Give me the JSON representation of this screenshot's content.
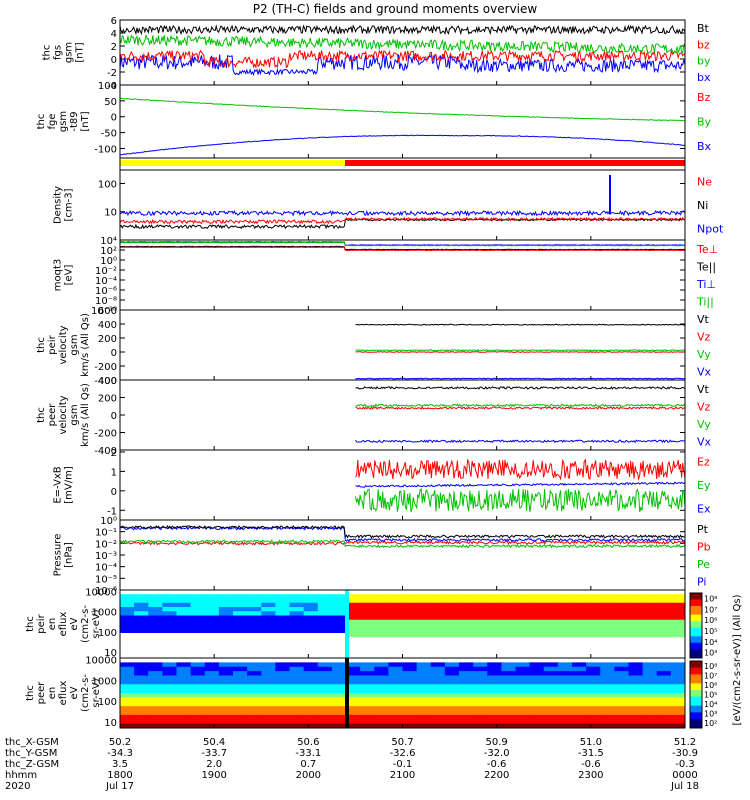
{
  "title": "P2 (TH-C) fields and ground moments overview",
  "chart_data": {
    "type": "line",
    "x_time_ticks": [
      "1800",
      "1900",
      "2000",
      "2100",
      "2200",
      "2300",
      "0000"
    ],
    "x_date_labels": [
      "Jul 17",
      "Jul 18"
    ],
    "year": "2020",
    "ephemeris": {
      "row_labels": [
        "thc_X-GSM",
        "thc_Y-GSM",
        "thc_Z-GSM",
        "hhmm",
        "2020"
      ],
      "X": [
        "50.2",
        "50.4",
        "50.6",
        "50.7",
        "50.9",
        "51.0",
        "51.2"
      ],
      "Xgsm": [
        "-34.3",
        "-33.7",
        "-33.1",
        "-32.6",
        "-32.0",
        "-31.5",
        "-30.9"
      ],
      "Ygsm": [
        "3.5",
        "2.0",
        "0.7",
        "-0.1",
        "-0.6",
        "-0.6",
        "-0.3"
      ],
      "Zgsm": [
        "1800",
        "1900",
        "2000",
        "2100",
        "2200",
        "2300",
        "0000"
      ]
    },
    "transition_hhmm": "2030",
    "panels": [
      {
        "id": "fgs",
        "ylabel": [
          "thc",
          "fgs",
          "gsm",
          "[nT]"
        ],
        "ylim": [
          -4,
          6
        ],
        "yticks": [
          "6",
          "4",
          "2",
          "0",
          "-2",
          "-4"
        ],
        "legend": [
          {
            "label": "Bt",
            "color": "#000000"
          },
          {
            "label": "bz",
            "color": "#ff0000"
          },
          {
            "label": "by",
            "color": "#00c000"
          },
          {
            "label": "bx",
            "color": "#0000ff"
          }
        ]
      },
      {
        "id": "fge",
        "ylabel": [
          "thc",
          "fge",
          "gsm",
          "-t89",
          "[nT]"
        ],
        "ylim": [
          -130,
          100
        ],
        "yticks": [
          "100",
          "50",
          "0",
          "-50",
          "-100"
        ],
        "legend": [
          {
            "label": "Bz",
            "color": "#ff0000"
          },
          {
            "label": "By",
            "color": "#00c000"
          },
          {
            "label": "Bx",
            "color": "#0000ff"
          }
        ]
      },
      {
        "id": "density",
        "ylabel": [
          "Density",
          "[cm-3]"
        ],
        "ylim": [
          1,
          300
        ],
        "yticks": [
          "100",
          "10"
        ],
        "legend": [
          {
            "label": "Ne",
            "color": "#ff0000"
          },
          {
            "label": "Ni",
            "color": "#000000"
          },
          {
            "label": "Npot",
            "color": "#0000ff"
          }
        ]
      },
      {
        "id": "temperature",
        "ylabel": [
          "moqt3",
          "[eV]"
        ],
        "ylim": [
          1e-10,
          10000.0
        ],
        "yticks": [
          "10⁴",
          "10²",
          "10⁰",
          "10⁻²",
          "10⁻⁴",
          "10⁻⁶",
          "10⁻⁸",
          "10⁻¹⁰"
        ],
        "legend": [
          {
            "label": "Te⊥",
            "color": "#ff0000"
          },
          {
            "label": "Te||",
            "color": "#000000"
          },
          {
            "label": "Ti⊥",
            "color": "#0000ff"
          },
          {
            "label": "Ti||",
            "color": "#00c000"
          }
        ]
      },
      {
        "id": "peir_vel",
        "ylabel": [
          "thc",
          "peir",
          "velocity",
          "gsm",
          "km/s (All Qs)"
        ],
        "ylim": [
          -400,
          600
        ],
        "yticks": [
          "600",
          "400",
          "200",
          "0",
          "-200",
          "-400"
        ],
        "series_values": {
          "Vt": 390,
          "Vz": 0,
          "Vy": 25,
          "Vx": -380
        },
        "legend": [
          {
            "label": "Vt",
            "color": "#000000"
          },
          {
            "label": "Vz",
            "color": "#ff0000"
          },
          {
            "label": "Vy",
            "color": "#00c000"
          },
          {
            "label": "Vx",
            "color": "#0000ff"
          }
        ]
      },
      {
        "id": "peer_vel",
        "ylabel": [
          "thc",
          "peer",
          "velocity",
          "gsm",
          "km/s (All Qs)"
        ],
        "ylim": [
          -400,
          400
        ],
        "yticks": [
          "400",
          "200",
          "0",
          "-200",
          "-400"
        ],
        "series_values": {
          "Vt": 310,
          "Vz": 80,
          "Vy": 110,
          "Vx": -300
        },
        "legend": [
          {
            "label": "Vt",
            "color": "#000000"
          },
          {
            "label": "Vz",
            "color": "#ff0000"
          },
          {
            "label": "Vy",
            "color": "#00c000"
          },
          {
            "label": "Vx",
            "color": "#0000ff"
          }
        ]
      },
      {
        "id": "efield",
        "ylabel": [
          "E=-VxB",
          "[mV/m]"
        ],
        "ylim": [
          -1.5,
          2.1
        ],
        "yticks": [
          "2",
          "1",
          "0",
          "-1"
        ],
        "legend": [
          {
            "label": "Ez",
            "color": "#ff0000"
          },
          {
            "label": "Ey",
            "color": "#00c000"
          },
          {
            "label": "Ex",
            "color": "#0000ff"
          }
        ]
      },
      {
        "id": "pressure",
        "ylabel": [
          "Pressure",
          "[nPa]"
        ],
        "ylim": [
          1e-06,
          1
        ],
        "yticks": [
          "10⁰",
          "10⁻¹",
          "10⁻²",
          "10⁻³",
          "10⁻⁴",
          "10⁻⁵",
          "10⁻⁶"
        ],
        "legend": [
          {
            "label": "Pt",
            "color": "#000000"
          },
          {
            "label": "Pb",
            "color": "#ff0000"
          },
          {
            "label": "Pe",
            "color": "#00c000"
          },
          {
            "label": "Pi",
            "color": "#0000ff"
          }
        ]
      },
      {
        "id": "peir_spec",
        "ylabel": [
          "thc",
          "peir",
          "en",
          "eflux",
          "eV",
          "(cm2-s-",
          "sr-eV)"
        ],
        "ylim": [
          5,
          12000
        ],
        "yticks": [
          "10000",
          "1000",
          "100",
          "10"
        ]
      },
      {
        "id": "peer_spec",
        "ylabel": [
          "thc",
          "peer",
          "en",
          "eflux",
          "eV",
          "(cm2-s-",
          "sr-eV)"
        ],
        "ylim": [
          5,
          12000
        ],
        "yticks": [
          "10000",
          "1000",
          "100",
          "10"
        ]
      }
    ],
    "colorbar": {
      "label": "[eV/(cm2-s-sr-eV)] (All Qs)",
      "upper_ticks": [
        "10⁸",
        "10⁷",
        "10⁶",
        "10⁵",
        "10⁴",
        "10³"
      ],
      "lower_ticks": [
        "10⁸",
        "10⁷",
        "10⁶",
        "10⁵",
        "10⁴",
        "10³",
        "10²"
      ]
    },
    "status_bar_colors": {
      "before": "#ffff00",
      "after": "#ff0000"
    }
  }
}
